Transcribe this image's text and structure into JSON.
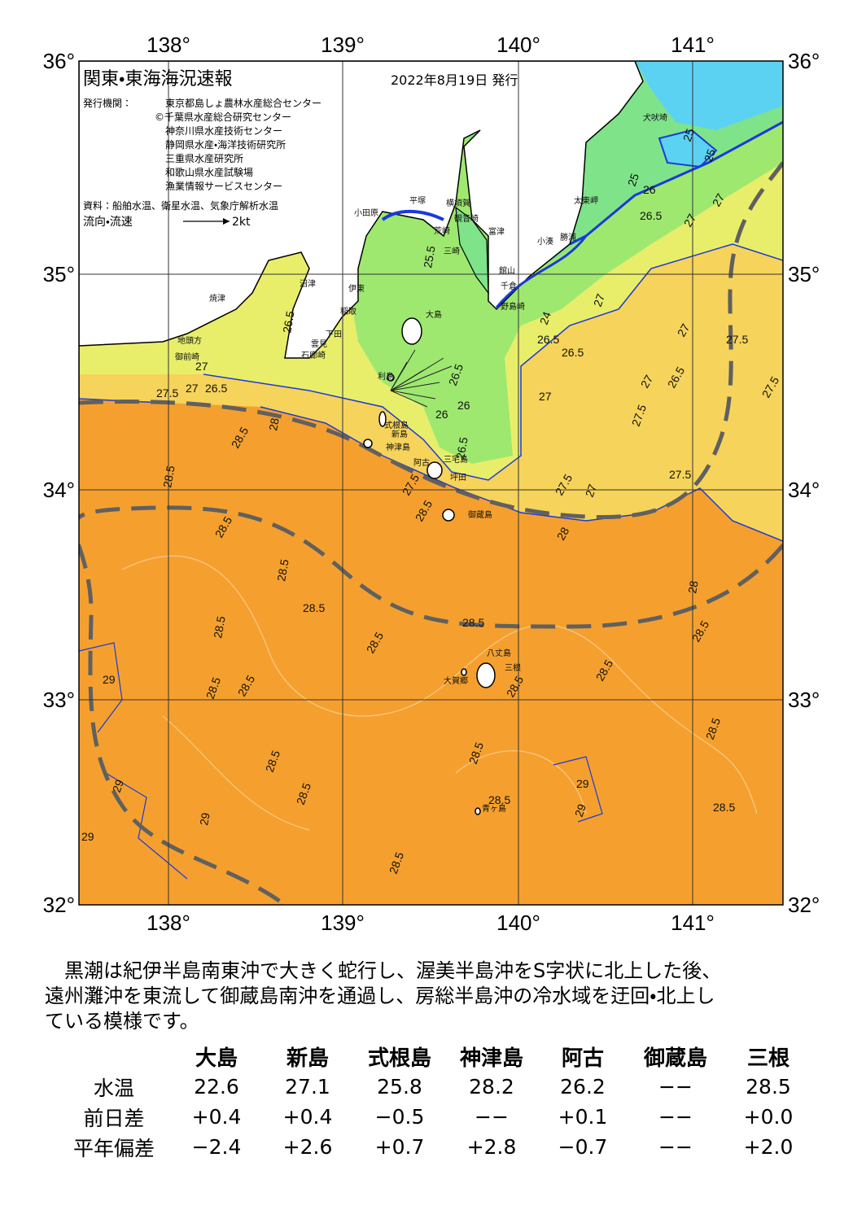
{
  "header": {
    "title": "関東・東海海況速報",
    "date": "2022年8月19日 発行",
    "issuer_label": "発行機関：",
    "issuers": [
      "東京都島しょ農林水産総合センター",
      "©千葉県水産総合研究センター",
      "神奈川県水産技術センター",
      "静岡県水産・海洋技術研究所",
      "三重県水産研究所",
      "和歌山県水産試験場",
      "漁業情報サービスセンター"
    ],
    "source": "資料：船舶水温、衛星水温、気象庁解析水温",
    "legend_label": "流向・流速",
    "legend_scale": "2kt"
  },
  "axes": {
    "lon_labels": [
      "138°",
      "139°",
      "140°",
      "141°"
    ],
    "lat_labels": [
      "36°",
      "35°",
      "34°",
      "33°",
      "32°"
    ]
  },
  "places": [
    "犬吠埼",
    "太東岬",
    "小湊",
    "勝浦",
    "富津",
    "館山",
    "千倉",
    "野島崎",
    "三崎",
    "横須賀",
    "観音崎",
    "荒崎",
    "平塚",
    "小田原",
    "沼津",
    "伊東",
    "稲取",
    "下田",
    "石廊崎",
    "雲見",
    "焼津",
    "地頭方",
    "御前崎",
    "大島",
    "利島",
    "新島",
    "式根島",
    "神津島",
    "三宅島",
    "阿古",
    "坪田",
    "御蔵島",
    "八丈島",
    "三根",
    "大賀郷",
    "青ヶ島"
  ],
  "contour_labels": [
    "25.5",
    "26.5",
    "26.5",
    "26.5",
    "27",
    "27.5",
    "27",
    "26.5",
    "28",
    "28.5",
    "28.5",
    "28.5",
    "28.5",
    "28.5",
    "28.5",
    "28.5",
    "28.5",
    "28.5",
    "28.5",
    "28.5",
    "28.5",
    "28.5",
    "28.5",
    "28.5",
    "28.5",
    "28.5",
    "28.5",
    "28.5",
    "28.5",
    "29",
    "29",
    "29",
    "29",
    "29",
    "29",
    "27.5",
    "27.5",
    "27",
    "26.5",
    "27",
    "27.5",
    "27",
    "26",
    "26",
    "26.5",
    "27.5",
    "27",
    "28",
    "27.5",
    "28.5",
    "27.5",
    "28",
    "25",
    "26",
    "26.5",
    "27",
    "27",
    "27",
    "24",
    "25",
    "25",
    "26.5"
  ],
  "description": [
    "黒潮は紀伊半島南東沖で大きく蛇行し、渥美半島沖をS字状に北上した後、",
    "遠州灘沖を東流して御蔵島南沖を通過し、房総半島沖の冷水域を迂回・北上し",
    "ている模様です。"
  ],
  "table": {
    "columns": [
      "大島",
      "新島",
      "式根島",
      "神津島",
      "阿古",
      "御蔵島",
      "三根"
    ],
    "rows": [
      [
        "水温",
        "22.6",
        "27.1",
        "25.8",
        "28.2",
        "26.2",
        "−−",
        "28.5"
      ],
      [
        "前日差",
        "+0.4",
        "+0.4",
        "−0.5",
        "−−",
        "+0.1",
        "−−",
        "+0.0"
      ],
      [
        "平年偏差",
        "−2.4",
        "+2.6",
        "+0.7",
        "+2.8",
        "−0.7",
        "−−",
        "+2.0"
      ]
    ]
  }
}
